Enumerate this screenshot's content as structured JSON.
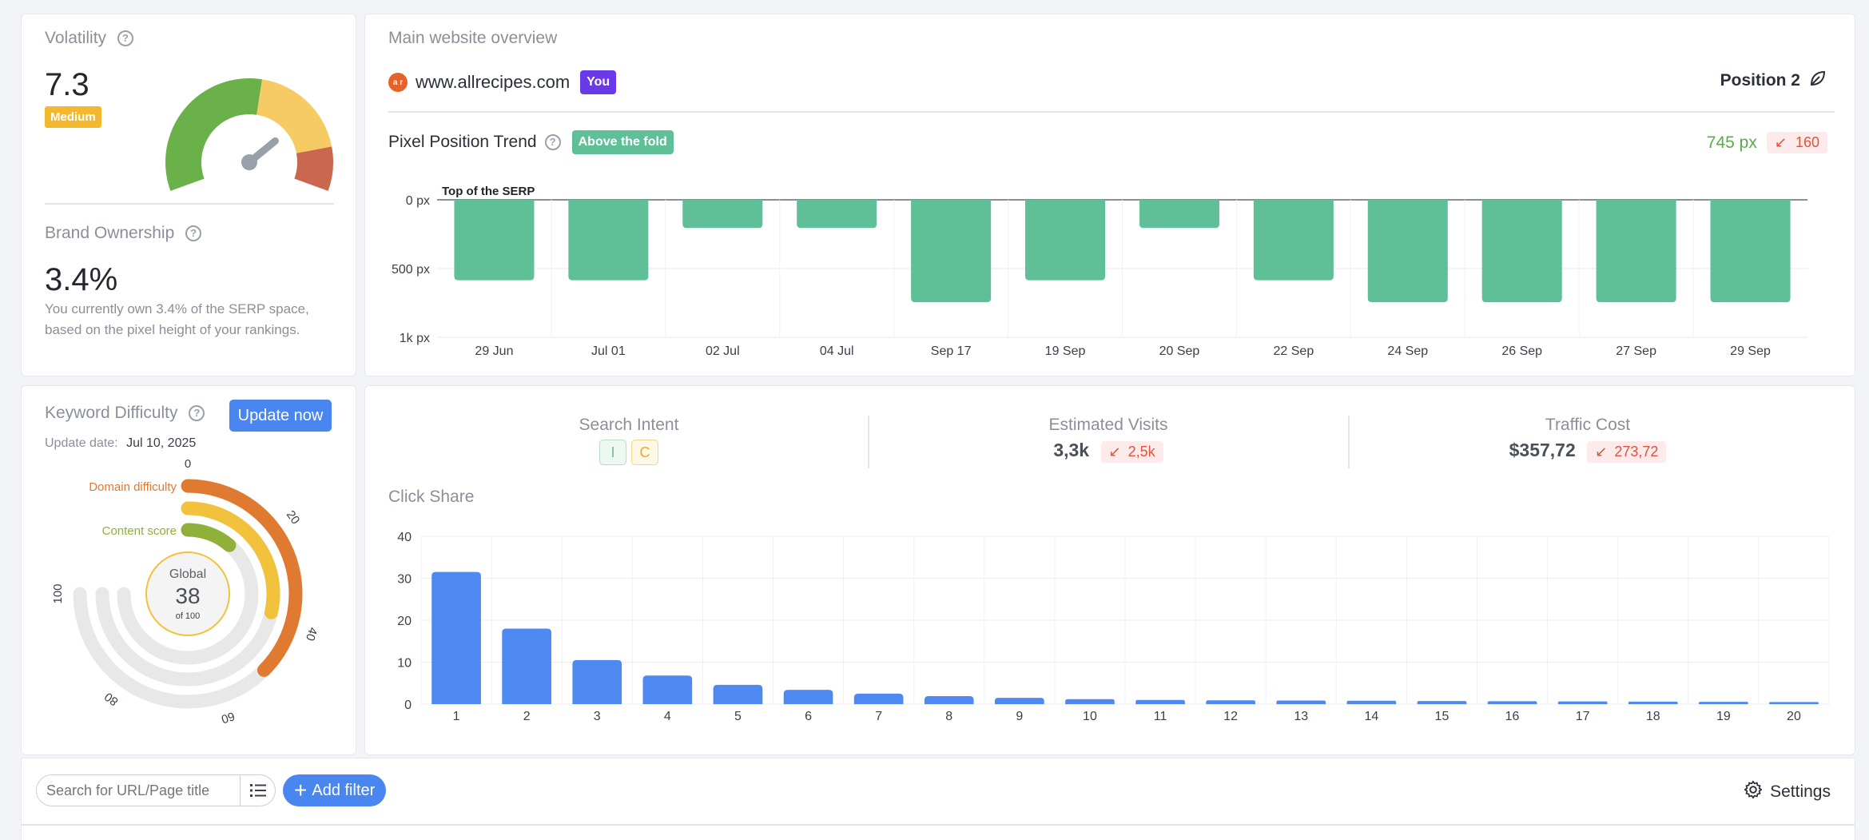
{
  "volatility": {
    "title": "Volatility",
    "value": "7.3",
    "level": "Medium",
    "gauge_level": 7.3,
    "colors": {
      "green": "#6bb14a",
      "yellow": "#f7cb63",
      "red": "#c9674f",
      "needle": "#9aa0aa"
    }
  },
  "brand": {
    "title": "Brand Ownership",
    "value": "3.4%",
    "description_line1": "You currently own 3.4% of the SERP space,",
    "description_line2": "based on the pixel height of your rankings."
  },
  "overview": {
    "title": "Main website overview",
    "favicon_text": "a r",
    "domain": "www.allrecipes.com",
    "you_badge": "You",
    "position_label": "Position 2",
    "position_icon": "leaf-icon"
  },
  "pixel_trend": {
    "title": "Pixel Position Trend",
    "fold_badge": "Above the fold",
    "current_px": "745 px",
    "change": "160",
    "top_label": "Top of the SERP",
    "y_ticks": [
      "0 px",
      "500 px",
      "1k px"
    ]
  },
  "keyword_difficulty": {
    "title": "Keyword Difficulty",
    "update_button": "Update now",
    "update_label": "Update date:",
    "update_date": "Jul 10, 2025",
    "domain_label": "Domain difficulty",
    "content_label": "Content score",
    "global_label": "Global",
    "global_value": "38",
    "global_of": "of 100",
    "scale_ticks": [
      "0",
      "20",
      "40",
      "60",
      "80",
      "100"
    ],
    "domain_difficulty_value": 50,
    "content_score_value": 15,
    "global_score_value": 38,
    "colors": {
      "domain": "#e07a31",
      "global": "#f2c23c",
      "content": "#8fb13a",
      "track": "#e8e8e8"
    }
  },
  "metrics": {
    "intent_label": "Search Intent",
    "intent_tags": [
      "I",
      "C"
    ],
    "visits_label": "Estimated Visits",
    "visits_value": "3,3k",
    "visits_change": "2,5k",
    "cost_label": "Traffic Cost",
    "cost_value": "$357,72",
    "cost_change": "273,72"
  },
  "click_share": {
    "title": "Click Share"
  },
  "toolbar": {
    "search_placeholder": "Search for URL/Page title",
    "add_filter": "Add filter",
    "settings": "Settings"
  },
  "chart_data": [
    {
      "type": "bar",
      "title": "Pixel Position Trend",
      "categories": [
        "29 Jun",
        "Jul 01",
        "02 Jul",
        "04 Jul",
        "Sep 17",
        "19 Sep",
        "20 Sep",
        "22 Sep",
        "24 Sep",
        "26 Sep",
        "27 Sep",
        "29 Sep"
      ],
      "values": [
        585,
        585,
        205,
        205,
        745,
        585,
        205,
        585,
        745,
        745,
        745,
        745
      ],
      "ylim": [
        0,
        1000
      ],
      "y_inverted": true,
      "yticks": [
        "0 px",
        "500 px",
        "1k px"
      ],
      "color": "#5fbf97",
      "grid": true
    },
    {
      "type": "bar",
      "title": "Click Share",
      "categories": [
        "1",
        "2",
        "3",
        "4",
        "5",
        "6",
        "7",
        "8",
        "9",
        "10",
        "11",
        "12",
        "13",
        "14",
        "15",
        "16",
        "17",
        "18",
        "19",
        "20"
      ],
      "values": [
        31.5,
        18,
        10.5,
        6.8,
        4.6,
        3.4,
        2.5,
        1.9,
        1.5,
        1.2,
        1.0,
        0.9,
        0.85,
        0.8,
        0.75,
        0.7,
        0.65,
        0.6,
        0.55,
        0.5
      ],
      "ylim": [
        0,
        40
      ],
      "yticks": [
        0,
        10,
        20,
        30,
        40
      ],
      "color": "#4e89f2",
      "grid": true
    }
  ]
}
